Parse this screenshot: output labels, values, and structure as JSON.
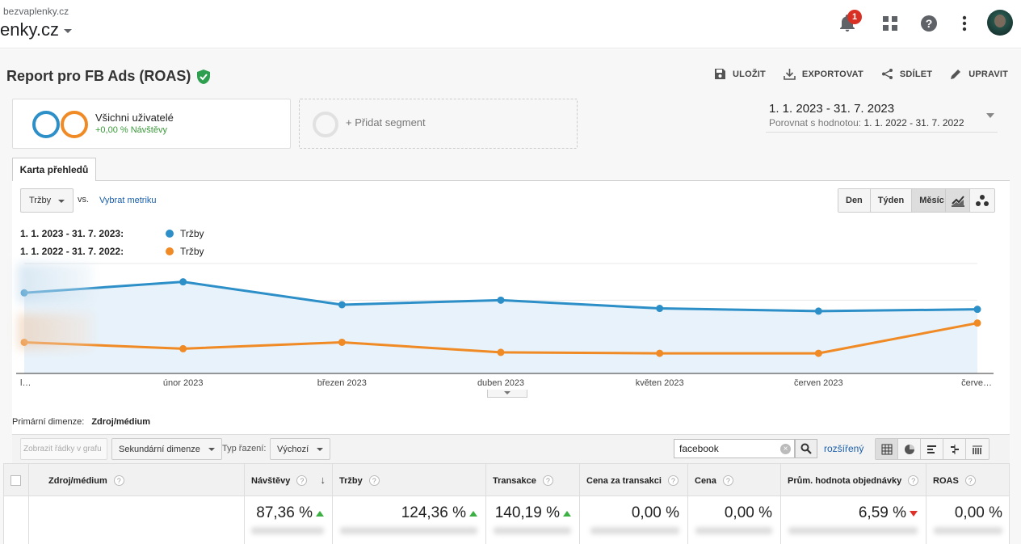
{
  "account": {
    "domain_small": "bezvaplenky.cz",
    "domain_big": "enky.cz"
  },
  "notifications": {
    "count": "1"
  },
  "report": {
    "title": "Report pro FB Ads (ROAS)"
  },
  "actions": {
    "save": "ULOŽIT",
    "export": "EXPORTOVAT",
    "share": "SDÍLET",
    "edit": "UPRAVIT"
  },
  "segments": {
    "all_users": "Všichni uživatelé",
    "all_users_sub": "+0,00 % Návštěvy",
    "add": "+ Přidat segment"
  },
  "date_range": {
    "main": "1. 1. 2023 - 31. 7. 2023",
    "compare_label": "Porovnat s hodnotou:",
    "compare_value": "1. 1. 2022 - 31. 7. 2022"
  },
  "tab": {
    "overview": "Karta přehledů"
  },
  "metric": {
    "selected": "Tržby",
    "vs": "vs.",
    "pick": "Vybrat metriku"
  },
  "granularity": {
    "day": "Den",
    "week": "Týden",
    "month": "Měsíc"
  },
  "legend": [
    {
      "period": "1. 1. 2023 - 31. 7. 2023:",
      "series": "Tržby",
      "color": "#2d8fc7"
    },
    {
      "period": "1. 1. 2022 - 31. 7. 2022:",
      "series": "Tržby",
      "color": "#f08a24"
    }
  ],
  "chart_data": {
    "type": "line",
    "categories": [
      "l…",
      "únor 2023",
      "březen 2023",
      "duben 2023",
      "květen 2023",
      "červen 2023",
      "červe…"
    ],
    "series": [
      {
        "name": "Tržby",
        "color": "#2d8fc7",
        "values": [
          88,
          100,
          75,
          80,
          71,
          68,
          70
        ]
      },
      {
        "name": "Tržby",
        "color": "#f08a24",
        "values": [
          34,
          27,
          34,
          23,
          22,
          22,
          55
        ]
      }
    ],
    "ylim": [
      0,
      120
    ],
    "grid": true,
    "fill_first_series": true
  },
  "table_controls": {
    "primary_dim_label": "Primární dimenze:",
    "primary_dim_value": "Zdroj/médium",
    "plot_rows": "Zobrazit řádky v grafu",
    "secondary_dim": "Sekundární dimenze",
    "sort_label": "Typ řazení:",
    "sort_value": "Výchozí",
    "search_value": "facebook",
    "advanced": "rozšířený"
  },
  "table": {
    "headers": [
      "Zdroj/médium",
      "Návštěvy",
      "Tržby",
      "Transakce",
      "Cena za transakci",
      "Cena",
      "Prům. hodnota objednávky",
      "ROAS"
    ],
    "totals": [
      {
        "value": "87,36 %",
        "trend": "up"
      },
      {
        "value": "124,36 %",
        "trend": "up"
      },
      {
        "value": "140,19 %",
        "trend": "up"
      },
      {
        "value": "0,00 %",
        "trend": "none"
      },
      {
        "value": "0,00 %",
        "trend": "none"
      },
      {
        "value": "6,59 %",
        "trend": "down"
      },
      {
        "value": "0,00 %",
        "trend": "none"
      }
    ]
  }
}
